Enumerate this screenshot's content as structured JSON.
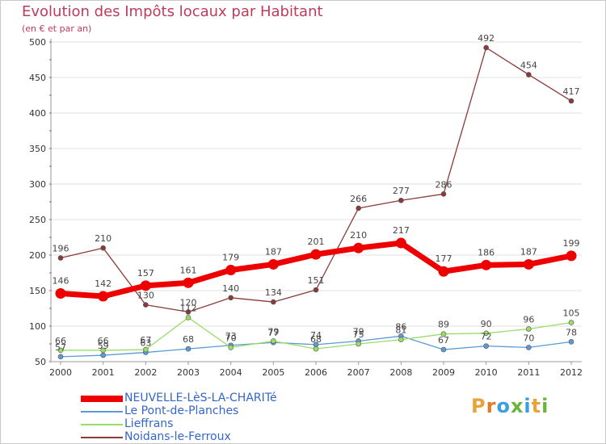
{
  "title": "Evolution des Impôts locaux par Habitant",
  "subtitle": "(en € et par an)",
  "logo": {
    "text": "Proxiti",
    "letter_colors": [
      "#e8a33a",
      "#e07b2a",
      "#3aa0dc",
      "#6bb53a",
      "#3aa0dc",
      "#e8a33a",
      "#6bb53a"
    ]
  },
  "chart_data": {
    "type": "line",
    "title": "Evolution des Impôts locaux par Habitant",
    "subtitle": "(en € et par an)",
    "xlabel": "",
    "ylabel": "",
    "categories": [
      "2000",
      "2001",
      "2002",
      "2003",
      "2004",
      "2005",
      "2006",
      "2007",
      "2008",
      "2009",
      "2010",
      "2011",
      "2012"
    ],
    "ylim": [
      50,
      500
    ],
    "yticks": [
      50,
      100,
      150,
      200,
      250,
      300,
      350,
      400,
      450,
      500
    ],
    "ytick_labels": [
      "50",
      "100",
      "150",
      "200",
      "250",
      "300",
      "350",
      "400",
      "450",
      "500"
    ],
    "grid": true,
    "legend_position": "bottom-left",
    "series": [
      {
        "name": "NEUVELLE-LèS-LA-CHARITé",
        "color": "#ee0000",
        "values": [
          146,
          142,
          157,
          161,
          179,
          187,
          201,
          210,
          217,
          177,
          186,
          187,
          199
        ],
        "labels": [
          "146",
          "142",
          "157",
          "161",
          "179",
          "187",
          "201",
          "210",
          "217",
          "177",
          "186",
          "187",
          "199"
        ],
        "emphasis": "thick"
      },
      {
        "name": "Le Pont-de-Planches",
        "color": "#5b9bd5",
        "values": [
          57,
          59,
          63,
          68,
          73,
          77,
          74,
          79,
          86,
          67,
          72,
          70,
          78
        ],
        "labels": [
          "57",
          "59",
          "63",
          "68",
          "73",
          "77",
          "74",
          "79",
          "86",
          "67",
          "72",
          "70",
          "78"
        ],
        "emphasis": "thin"
      },
      {
        "name": "Lieffrans",
        "color": "#99dd66",
        "values": [
          66,
          66,
          67,
          112,
          70,
          79,
          68,
          75,
          81,
          89,
          90,
          96,
          105
        ],
        "labels": [
          "66",
          "66",
          "67",
          "112",
          "70",
          "79",
          "68",
          "75",
          "81",
          "89",
          "90",
          "96",
          "105"
        ],
        "emphasis": "thin"
      },
      {
        "name": "Noidans-le-Ferroux",
        "color": "#8b3a3a",
        "values": [
          196,
          210,
          130,
          120,
          140,
          134,
          151,
          266,
          277,
          286,
          492,
          454,
          417
        ],
        "labels": [
          "196",
          "210",
          "130",
          "120",
          "140",
          "134",
          "151",
          "266",
          "277",
          "286",
          "492",
          "454",
          "417"
        ],
        "emphasis": "thin"
      }
    ]
  }
}
